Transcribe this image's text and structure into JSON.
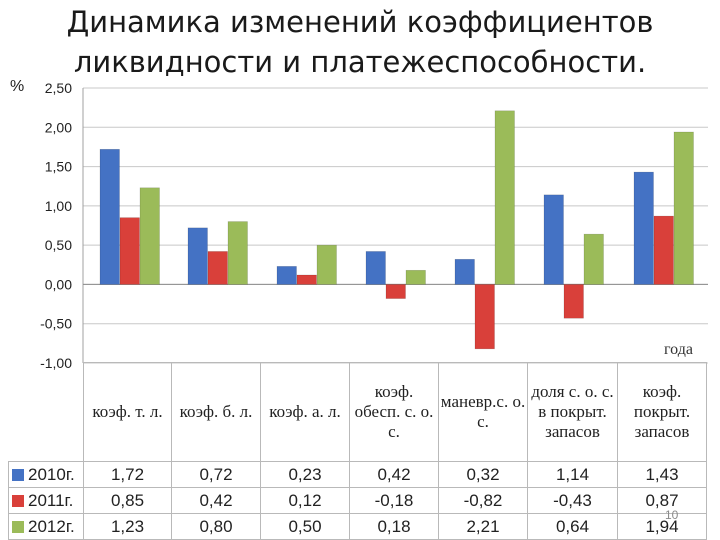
{
  "title_line1": "Динамика изменений коэффициентов",
  "title_line2": "ликвидности и платежеспособности.",
  "page_number": "10",
  "chart_data": {
    "type": "bar",
    "y_unit_label": "%",
    "x_unit_label": "года",
    "categories": [
      "коэф. т. л.",
      "коэф. б. л.",
      "коэф. а. л.",
      "коэф. обесп. с. о. с.",
      "маневр.с. о. с.",
      "доля с. о. с. в покрыт. запасов",
      "коэф. покрыт. запасов"
    ],
    "series": [
      {
        "name": "2010г.",
        "color": "#4472C4",
        "values": [
          1.72,
          0.72,
          0.23,
          0.42,
          0.32,
          1.14,
          1.43
        ],
        "labels": [
          "1,72",
          "0,72",
          "0,23",
          "0,42",
          "0,32",
          "1,14",
          "1,43"
        ]
      },
      {
        "name": "2011г.",
        "color": "#D9403A",
        "values": [
          0.85,
          0.42,
          0.12,
          -0.18,
          -0.82,
          -0.43,
          0.87
        ],
        "labels": [
          "0,85",
          "0,42",
          "0,12",
          "-0,18",
          "-0,82",
          "-0,43",
          "0,87"
        ]
      },
      {
        "name": "2012г.",
        "color": "#9BBB59",
        "values": [
          1.23,
          0.8,
          0.5,
          0.18,
          2.21,
          0.64,
          1.94
        ],
        "labels": [
          "1,23",
          "0,80",
          "0,50",
          "0,18",
          "2,21",
          "0,64",
          "1,94"
        ]
      }
    ],
    "ylim": [
      -1.0,
      2.5
    ],
    "yticks": [
      2.5,
      2.0,
      1.5,
      1.0,
      0.5,
      0.0,
      -0.5,
      -1.0
    ],
    "ytick_labels": [
      "2,50",
      "2,00",
      "1,50",
      "1,00",
      "0,50",
      "0,00",
      "-0,50",
      "-1,00"
    ],
    "grid": true,
    "legend": "data-table"
  }
}
